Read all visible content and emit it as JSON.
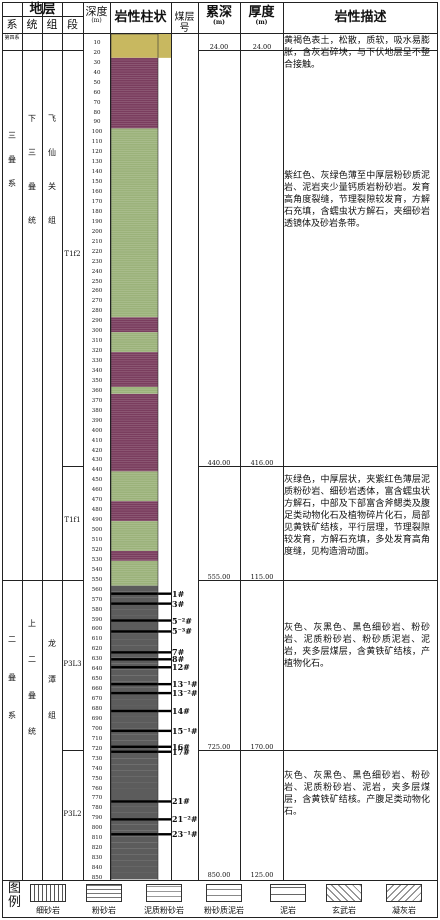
{
  "header": {
    "stratum": "地层",
    "system": "系",
    "series": "统",
    "group": "组",
    "section": "段",
    "depth_label": "深度",
    "depth_unit": "(m)",
    "lithology_col": "岩性柱状",
    "coal_no": "煤层号",
    "cumulative_depth": "累深",
    "cumulative_unit": "(m)",
    "thickness": "厚度",
    "thickness_unit": "(m)",
    "description": "岩性描述"
  },
  "strata": {
    "quaternary": "第四系",
    "triassic_system": "三\n\n叠\n\n系",
    "lower_triassic_series": "下\n\n三\n\n叠\n\n统",
    "feixianguan_group": "飞\n\n仙\n\n关\n\n组",
    "t1f2": "T1f2",
    "t1f1": "T1f1",
    "permian_system": "二\n\n叠\n\n系",
    "upper_permian_series": "上\n\n二\n\n叠\n\n统",
    "longtan_group": "龙\n\n潭\n\n组",
    "p3l3": "P3L3",
    "p3l2": "P3L2"
  },
  "depth_ticks": [
    "10",
    "20",
    "30",
    "40",
    "50",
    "60",
    "70",
    "80",
    "90",
    "100",
    "110",
    "120",
    "130",
    "140",
    "150",
    "160",
    "170",
    "180",
    "190",
    "200",
    "210",
    "220",
    "230",
    "240",
    "250",
    "260",
    "270",
    "280",
    "290",
    "300",
    "310",
    "320",
    "330",
    "340",
    "350",
    "360",
    "370",
    "380",
    "390",
    "400",
    "410",
    "420",
    "430",
    "440",
    "450",
    "460",
    "470",
    "480",
    "490",
    "500",
    "510",
    "520",
    "530",
    "540",
    "550",
    "560",
    "570",
    "580",
    "590",
    "600",
    "610",
    "620",
    "630",
    "640",
    "650",
    "660",
    "670",
    "680",
    "690",
    "700",
    "710",
    "720",
    "730",
    "740",
    "750",
    "760",
    "770",
    "780",
    "790",
    "800",
    "810",
    "820",
    "830",
    "840",
    "850"
  ],
  "coal_seams": [
    {
      "label": "1#",
      "depth": 563
    },
    {
      "label": "3#",
      "depth": 573
    },
    {
      "label": "5⁻²#",
      "depth": 590
    },
    {
      "label": "5⁻³#",
      "depth": 601
    },
    {
      "label": "7#",
      "depth": 622
    },
    {
      "label": "8#",
      "depth": 629
    },
    {
      "label": "12#",
      "depth": 637
    },
    {
      "label": "13⁻¹#",
      "depth": 654
    },
    {
      "label": "13⁻²#",
      "depth": 663
    },
    {
      "label": "14#",
      "depth": 681
    },
    {
      "label": "15⁻¹#",
      "depth": 701
    },
    {
      "label": "16#",
      "depth": 717
    },
    {
      "label": "17#",
      "depth": 722
    },
    {
      "label": "21#",
      "depth": 772
    },
    {
      "label": "21⁻²#",
      "depth": 790
    },
    {
      "label": "23⁻¹#",
      "depth": 805
    }
  ],
  "layers": [
    {
      "name": "quaternary",
      "cum_depth": "24.00",
      "thickness": "24.00",
      "description": "黄褐色表土，松散，质软，吸水易膨胀，含灰岩碎块，与下伏地层呈不整合接触。"
    },
    {
      "name": "t1f2",
      "cum_depth": "440.00",
      "thickness": "416.00",
      "description": "紫红色、灰绿色薄至中厚层粉砂质泥岩、泥岩夹少量钙质岩粉砂岩。发育高角度裂缝，节理裂隙较发育，方解石充填，含蠕虫状方解石，夹细砂岩透镜体及砂岩条带。"
    },
    {
      "name": "t1f1",
      "cum_depth": "555.00",
      "thickness": "115.00",
      "description": "灰绿色，中厚层状，夹紫红色薄层泥质粉砂岩、细砂岩透体，富含蠕虫状方解石，中部及下部富含斧鳃类及腹足类动物化石及植物碎片化石，局部见黄铁矿结核，平行层理，节理裂隙较发育，方解石充填，多处发育高角度缝，见构造滑动面。"
    },
    {
      "name": "p3l3",
      "cum_depth": "725.00",
      "thickness": "170.00",
      "description": "灰色、灰黑色、黑色细砂岩、粉砂岩、泥质粉砂岩、粉砂质泥岩、泥岩，夹多层煤层，含黄铁矿结核，产植物化石。"
    },
    {
      "name": "p3l2",
      "cum_depth": "850.00",
      "thickness": "125.00",
      "description": "灰色、灰黑色、黑色细砂岩、粉砂岩、泥质粉砂岩、泥岩，夹多层煤层，含黄铁矿结核。产腹足类动物化石。"
    }
  ],
  "legend": {
    "title": "图\n例",
    "items": [
      {
        "label": "细砂岩",
        "pattern": "fine-sandstone"
      },
      {
        "label": "粉砂岩",
        "pattern": "siltstone"
      },
      {
        "label": "泥质粉砂岩",
        "pattern": "muddy-siltstone"
      },
      {
        "label": "粉砂质泥岩",
        "pattern": "silty-mudstone"
      },
      {
        "label": "泥岩",
        "pattern": "mudstone"
      },
      {
        "label": "玄武岩",
        "pattern": "basalt"
      },
      {
        "label": "凝灰岩",
        "pattern": "tuff"
      }
    ]
  },
  "colors": {
    "quaternary": "#c8b860",
    "purple": "#7a3d5e",
    "green": "#9bb27a",
    "grey": "#8a8a8a",
    "coal": "#000000"
  }
}
